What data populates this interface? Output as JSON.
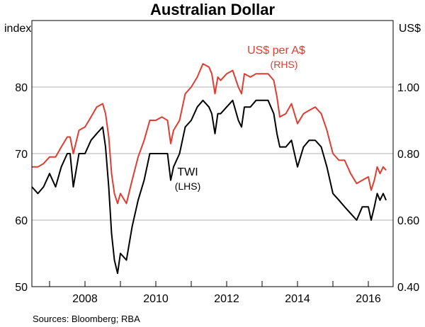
{
  "chart_data": {
    "type": "line",
    "title": "Australian Dollar",
    "left_axis_unit": "index",
    "right_axis_unit": "US$",
    "left_ylim": [
      50,
      90
    ],
    "right_ylim": [
      0.4,
      1.2
    ],
    "left_ticks": [
      "50",
      "60",
      "70",
      "80"
    ],
    "right_ticks": [
      "0.40",
      "0.60",
      "0.80",
      "1.00"
    ],
    "left_tick_values": [
      50,
      60,
      70,
      80
    ],
    "right_tick_values": [
      0.4,
      0.6,
      0.8,
      1.0
    ],
    "xlim": [
      2006.5,
      2016.7
    ],
    "x_ticks": [
      {
        "label": "2008",
        "value": 2008
      },
      {
        "label": "2010",
        "value": 2010
      },
      {
        "label": "2012",
        "value": 2012
      },
      {
        "label": "2014",
        "value": 2014
      },
      {
        "label": "2016",
        "value": 2016
      }
    ],
    "grid": true,
    "series": [
      {
        "name": "US$ per A$",
        "axis_label": "(RHS)",
        "axis": "right",
        "color": "#e03c31",
        "points": [
          [
            2006.5,
            0.76
          ],
          [
            2006.67,
            0.76
          ],
          [
            2006.83,
            0.77
          ],
          [
            2007.0,
            0.79
          ],
          [
            2007.17,
            0.79
          ],
          [
            2007.33,
            0.82
          ],
          [
            2007.5,
            0.85
          ],
          [
            2007.58,
            0.85
          ],
          [
            2007.67,
            0.8
          ],
          [
            2007.83,
            0.87
          ],
          [
            2008.0,
            0.88
          ],
          [
            2008.17,
            0.91
          ],
          [
            2008.33,
            0.94
          ],
          [
            2008.5,
            0.95
          ],
          [
            2008.58,
            0.92
          ],
          [
            2008.67,
            0.85
          ],
          [
            2008.75,
            0.74
          ],
          [
            2008.83,
            0.68
          ],
          [
            2008.92,
            0.65
          ],
          [
            2009.0,
            0.68
          ],
          [
            2009.17,
            0.65
          ],
          [
            2009.33,
            0.72
          ],
          [
            2009.5,
            0.79
          ],
          [
            2009.67,
            0.84
          ],
          [
            2009.83,
            0.9
          ],
          [
            2010.0,
            0.9
          ],
          [
            2010.17,
            0.91
          ],
          [
            2010.33,
            0.9
          ],
          [
            2010.42,
            0.83
          ],
          [
            2010.5,
            0.87
          ],
          [
            2010.67,
            0.9
          ],
          [
            2010.83,
            0.98
          ],
          [
            2011.0,
            1.0
          ],
          [
            2011.17,
            1.03
          ],
          [
            2011.33,
            1.07
          ],
          [
            2011.5,
            1.06
          ],
          [
            2011.58,
            1.04
          ],
          [
            2011.67,
            0.98
          ],
          [
            2011.75,
            1.03
          ],
          [
            2011.83,
            1.02
          ],
          [
            2012.0,
            1.04
          ],
          [
            2012.17,
            1.05
          ],
          [
            2012.33,
            1.0
          ],
          [
            2012.42,
            0.98
          ],
          [
            2012.5,
            1.04
          ],
          [
            2012.67,
            1.03
          ],
          [
            2012.83,
            1.04
          ],
          [
            2013.0,
            1.04
          ],
          [
            2013.17,
            1.04
          ],
          [
            2013.33,
            1.02
          ],
          [
            2013.42,
            0.97
          ],
          [
            2013.5,
            0.91
          ],
          [
            2013.67,
            0.92
          ],
          [
            2013.83,
            0.95
          ],
          [
            2014.0,
            0.89
          ],
          [
            2014.17,
            0.92
          ],
          [
            2014.33,
            0.93
          ],
          [
            2014.5,
            0.94
          ],
          [
            2014.67,
            0.92
          ],
          [
            2014.83,
            0.87
          ],
          [
            2015.0,
            0.8
          ],
          [
            2015.17,
            0.78
          ],
          [
            2015.33,
            0.78
          ],
          [
            2015.5,
            0.74
          ],
          [
            2015.67,
            0.71
          ],
          [
            2015.83,
            0.72
          ],
          [
            2016.0,
            0.73
          ],
          [
            2016.08,
            0.69
          ],
          [
            2016.17,
            0.72
          ],
          [
            2016.25,
            0.76
          ],
          [
            2016.33,
            0.74
          ],
          [
            2016.42,
            0.76
          ],
          [
            2016.5,
            0.75
          ]
        ]
      },
      {
        "name": "TWI",
        "axis_label": "(LHS)",
        "axis": "left",
        "color": "#000000",
        "points": [
          [
            2006.5,
            65
          ],
          [
            2006.67,
            64
          ],
          [
            2006.83,
            65
          ],
          [
            2007.0,
            67
          ],
          [
            2007.17,
            65
          ],
          [
            2007.33,
            68
          ],
          [
            2007.5,
            70
          ],
          [
            2007.58,
            70
          ],
          [
            2007.67,
            65
          ],
          [
            2007.83,
            70
          ],
          [
            2008.0,
            70
          ],
          [
            2008.17,
            72
          ],
          [
            2008.33,
            73
          ],
          [
            2008.5,
            74
          ],
          [
            2008.58,
            71
          ],
          [
            2008.67,
            65
          ],
          [
            2008.75,
            58
          ],
          [
            2008.83,
            54
          ],
          [
            2008.92,
            52
          ],
          [
            2009.0,
            55
          ],
          [
            2009.17,
            54
          ],
          [
            2009.33,
            59
          ],
          [
            2009.5,
            63
          ],
          [
            2009.67,
            66
          ],
          [
            2009.83,
            70
          ],
          [
            2010.0,
            70
          ],
          [
            2010.17,
            70
          ],
          [
            2010.33,
            70
          ],
          [
            2010.42,
            66
          ],
          [
            2010.5,
            68
          ],
          [
            2010.67,
            70
          ],
          [
            2010.83,
            74
          ],
          [
            2011.0,
            75
          ],
          [
            2011.17,
            77
          ],
          [
            2011.33,
            78
          ],
          [
            2011.5,
            77
          ],
          [
            2011.58,
            76
          ],
          [
            2011.67,
            73
          ],
          [
            2011.75,
            76
          ],
          [
            2011.83,
            76
          ],
          [
            2012.0,
            77
          ],
          [
            2012.17,
            78
          ],
          [
            2012.33,
            75
          ],
          [
            2012.42,
            74
          ],
          [
            2012.5,
            77
          ],
          [
            2012.67,
            77
          ],
          [
            2012.83,
            78
          ],
          [
            2013.0,
            78
          ],
          [
            2013.17,
            78
          ],
          [
            2013.33,
            76
          ],
          [
            2013.42,
            73
          ],
          [
            2013.5,
            71
          ],
          [
            2013.67,
            71
          ],
          [
            2013.83,
            72
          ],
          [
            2014.0,
            68
          ],
          [
            2014.17,
            71
          ],
          [
            2014.33,
            72
          ],
          [
            2014.5,
            72
          ],
          [
            2014.67,
            71
          ],
          [
            2014.83,
            68
          ],
          [
            2015.0,
            64
          ],
          [
            2015.17,
            63
          ],
          [
            2015.33,
            62
          ],
          [
            2015.5,
            61
          ],
          [
            2015.67,
            60
          ],
          [
            2015.83,
            62
          ],
          [
            2016.0,
            62
          ],
          [
            2016.08,
            60
          ],
          [
            2016.17,
            62
          ],
          [
            2016.25,
            64
          ],
          [
            2016.33,
            63
          ],
          [
            2016.42,
            64
          ],
          [
            2016.5,
            63
          ]
        ]
      }
    ]
  },
  "source": "Sources:  Bloomberg; RBA"
}
